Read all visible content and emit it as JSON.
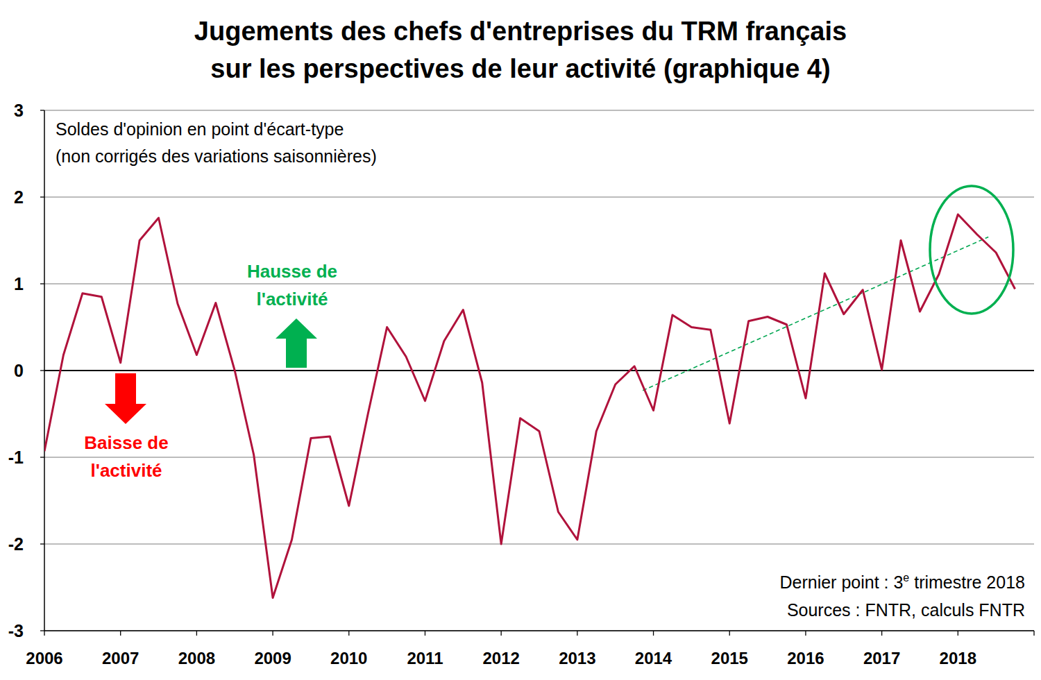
{
  "chart_data": {
    "type": "line",
    "title": [
      "Jugements des chefs d'entreprises du TRM français",
      "sur les perspectives de leur activité (graphique 4)"
    ],
    "subtitle": [
      "Soldes d'opinion en point d'écart-type",
      "(non corrigés des variations saisonnières)"
    ],
    "annotations": {
      "up": [
        "Hausse de",
        "l'activité"
      ],
      "down": [
        "Baisse de",
        "l'activité"
      ],
      "last_point": [
        "Dernier point : 3",
        "e",
        " trimestre 2018"
      ],
      "sources": "Sources : FNTR, calculs FNTR"
    },
    "xlim": [
      2006,
      2019
    ],
    "xticks": [
      2006,
      2007,
      2008,
      2009,
      2010,
      2011,
      2012,
      2013,
      2014,
      2015,
      2016,
      2017,
      2018
    ],
    "ylim": [
      -3,
      3
    ],
    "yticks": [
      -3,
      -2,
      -1,
      0,
      1,
      2,
      3
    ],
    "grid": true,
    "series": [
      {
        "name": "Soldes d'opinion",
        "color": "#b0123b",
        "line_style": "solid",
        "x": [
          2006,
          2006.25,
          2006.5,
          2006.75,
          2007,
          2007.25,
          2007.5,
          2007.75,
          2008,
          2008.25,
          2008.5,
          2008.75,
          2009,
          2009.25,
          2009.5,
          2009.75,
          2010,
          2010.25,
          2010.5,
          2010.75,
          2011,
          2011.25,
          2011.5,
          2011.75,
          2012,
          2012.25,
          2012.5,
          2012.75,
          2013,
          2013.25,
          2013.5,
          2013.75,
          2014,
          2014.25,
          2014.5,
          2014.75,
          2015,
          2015.25,
          2015.5,
          2015.75,
          2016,
          2016.25,
          2016.5,
          2016.75,
          2017,
          2017.25,
          2017.5,
          2017.75,
          2018,
          2018.25,
          2018.5,
          2018.75
        ],
        "values": [
          -0.93,
          0.18,
          0.89,
          0.85,
          0.09,
          1.5,
          1.76,
          0.77,
          0.18,
          0.78,
          0,
          -0.97,
          -2.62,
          -1.95,
          -0.78,
          -0.76,
          -1.56,
          -0.5,
          0.5,
          0.16,
          -0.35,
          0.34,
          0.7,
          -0.14,
          -2.0,
          -0.55,
          -0.7,
          -1.63,
          -1.95,
          -0.7,
          -0.16,
          0.05,
          -0.46,
          0.64,
          0.5,
          0.47,
          -0.61,
          0.57,
          0.62,
          0.53,
          -0.32,
          1.12,
          0.65,
          0.93,
          0.01,
          1.5,
          0.68,
          1.11,
          1.8,
          1.57,
          1.36,
          0.94
        ]
      },
      {
        "color": "#00a651",
        "line_style": "dashed",
        "x": [
          2013.86,
          2018.4
        ],
        "values": [
          -0.23,
          1.54
        ]
      }
    ]
  }
}
